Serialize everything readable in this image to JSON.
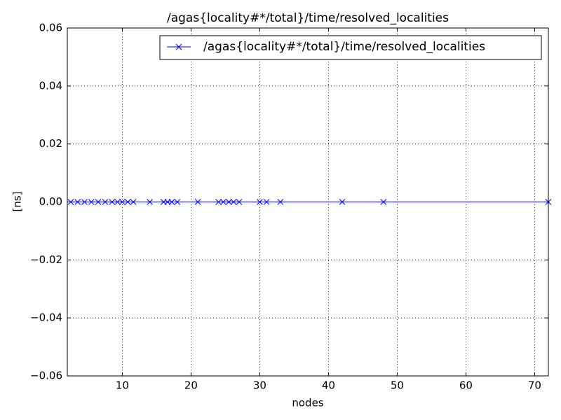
{
  "chart_data": {
    "type": "line",
    "title": "/agas{locality#*/total}/time/resolved_localities",
    "x_label": "nodes",
    "y_label": "[ns]",
    "x": [
      2.5,
      3.5,
      4.5,
      5.5,
      6.5,
      7.5,
      8.5,
      9.3,
      10,
      10.8,
      11.6,
      14,
      16,
      16.6,
      17.2,
      18,
      21,
      24,
      24.7,
      25.5,
      26.2,
      27,
      30,
      31,
      33,
      42,
      48,
      72
    ],
    "series": [
      {
        "name": "/agas{locality#*/total}/time/resolved_localities",
        "color": "#0000ff",
        "values": [
          0,
          0,
          0,
          0,
          0,
          0,
          0,
          0,
          0,
          0,
          0,
          0,
          0,
          0,
          0,
          0,
          0,
          0,
          0,
          0,
          0,
          0,
          0,
          0,
          0,
          0,
          0,
          0
        ]
      }
    ],
    "xlim": [
      2,
      72
    ],
    "xticks": [
      10,
      20,
      30,
      40,
      50,
      60,
      70
    ],
    "ylim": [
      -0.06,
      0.06
    ],
    "yticks": [
      {
        "value": -0.06,
        "label": "−0.06"
      },
      {
        "value": -0.04,
        "label": "−0.04"
      },
      {
        "value": -0.02,
        "label": "−0.02"
      },
      {
        "value": 0,
        "label": "0.00"
      },
      0.02,
      0.04,
      0.06
    ],
    "grid": true,
    "legend": "upper right"
  }
}
